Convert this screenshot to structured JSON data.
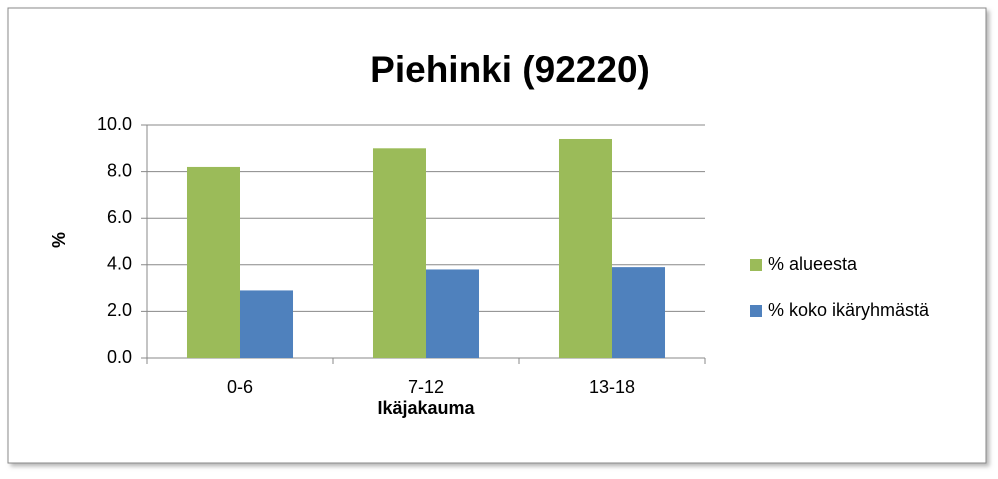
{
  "chart_data": {
    "type": "bar",
    "title": "Piehinki (92220)",
    "x_label": "Ikäjakauma",
    "y_label": "%",
    "categories": [
      "0-6",
      "7-12",
      "13-18"
    ],
    "series": [
      {
        "name": "% alueesta",
        "color": "#9bbb59",
        "values": [
          8.2,
          9.0,
          9.4
        ]
      },
      {
        "name": "% koko ikäryhmästä",
        "color": "#4f81bd",
        "values": [
          2.9,
          3.8,
          3.9
        ]
      }
    ],
    "ylim": [
      0,
      10
    ],
    "yticks": [
      {
        "value": 0,
        "label": "0.0"
      },
      {
        "value": 2,
        "label": "2.0"
      },
      {
        "value": 4,
        "label": "4.0"
      },
      {
        "value": 6,
        "label": "6.0"
      },
      {
        "value": 8,
        "label": "8.0"
      },
      {
        "value": 10,
        "label": "10.0"
      }
    ],
    "grid": true,
    "legend": "right"
  }
}
